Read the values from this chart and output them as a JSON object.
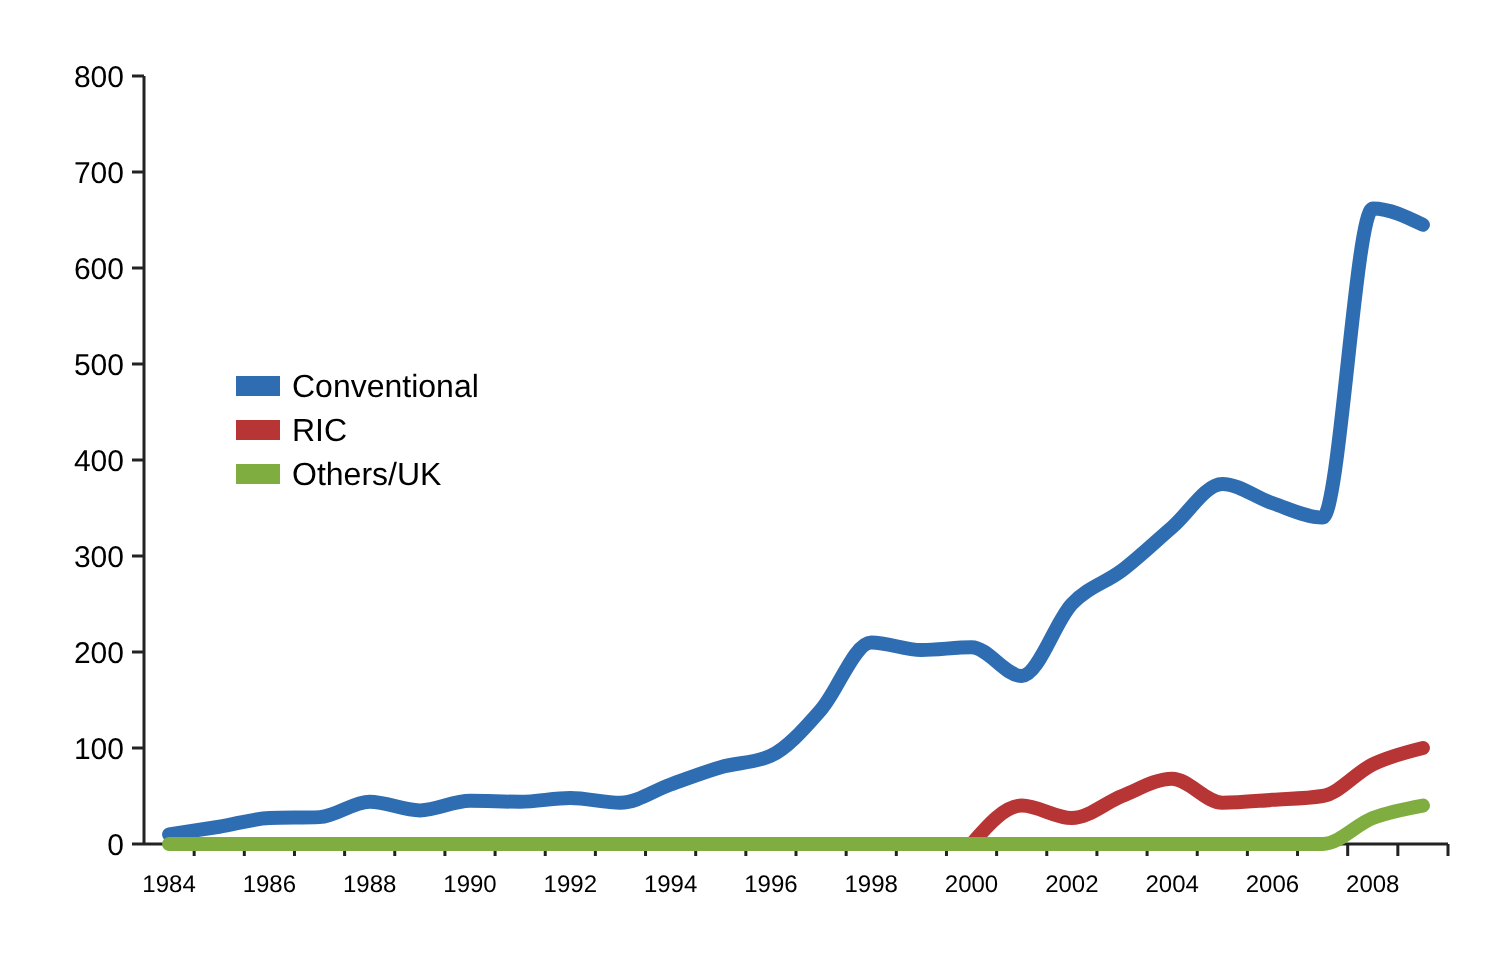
{
  "chart_data": {
    "type": "line",
    "categories": [
      "1984",
      null,
      "1986",
      null,
      "1988",
      null,
      "1990",
      null,
      "1992",
      null,
      "1994",
      null,
      "1996",
      null,
      "1998",
      null,
      "2000",
      null,
      "2002",
      null,
      "2004",
      null,
      "2006",
      null,
      "2008",
      null
    ],
    "series": [
      {
        "name": "Conventional",
        "color": "#2f6db3",
        "values": [
          10,
          18,
          27,
          28,
          44,
          35,
          45,
          44,
          48,
          43,
          62,
          80,
          92,
          140,
          210,
          202,
          205,
          175,
          250,
          285,
          330,
          375,
          355,
          340,
          662,
          645
        ]
      },
      {
        "name": "RIC",
        "color": "#b73535",
        "values": [
          null,
          null,
          null,
          null,
          null,
          null,
          null,
          null,
          null,
          null,
          null,
          null,
          null,
          null,
          null,
          null,
          0,
          40,
          27,
          50,
          68,
          43,
          46,
          50,
          83,
          100
        ]
      },
      {
        "name": "Others/UK",
        "color": "#7fad3f",
        "values": [
          0,
          0,
          0,
          0,
          0,
          0,
          0,
          0,
          0,
          0,
          0,
          0,
          0,
          0,
          0,
          0,
          0,
          0,
          0,
          0,
          0,
          0,
          0,
          0,
          27,
          40
        ]
      }
    ],
    "ylim": [
      0,
      800
    ],
    "yticks": [
      0,
      100,
      200,
      300,
      400,
      500,
      600,
      700,
      800
    ],
    "grid": false,
    "legend": "left",
    "line_style": "solid",
    "marker": "none"
  }
}
